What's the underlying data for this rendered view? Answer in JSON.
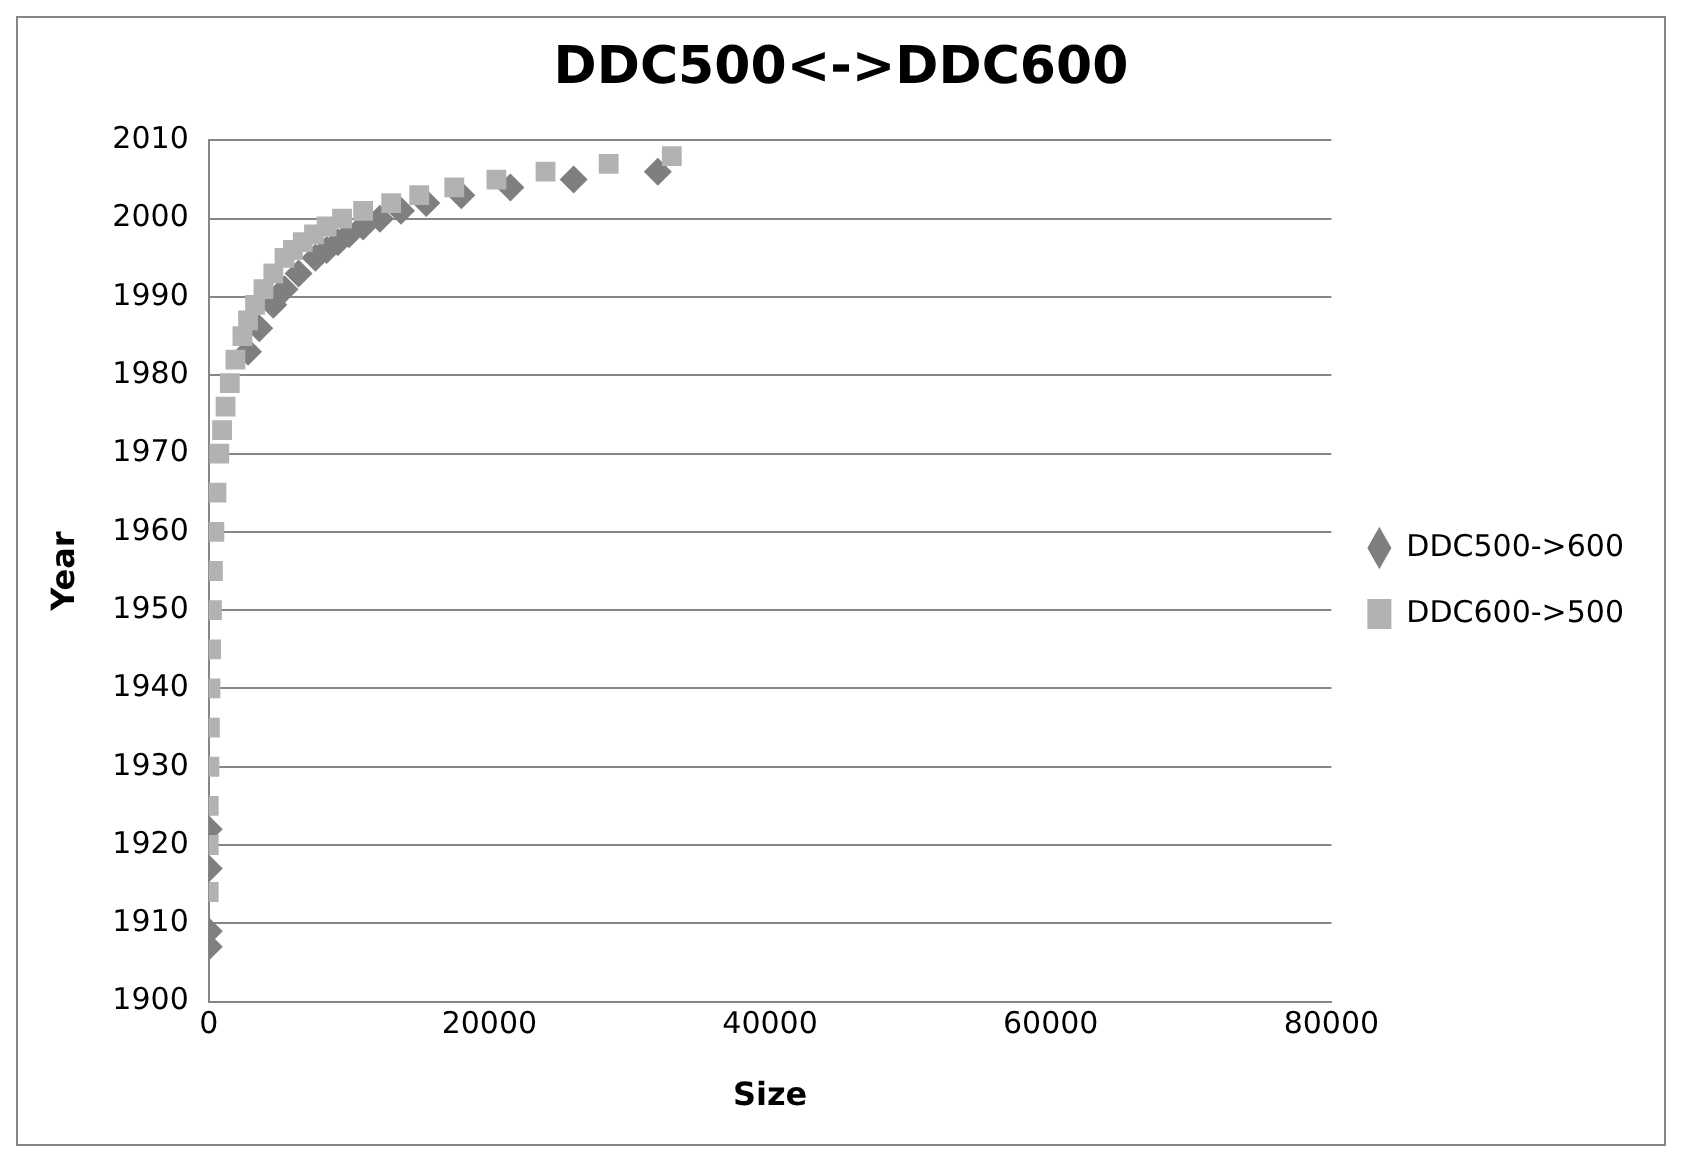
{
  "chart_data": {
    "type": "scatter",
    "title": "DDC500<->DDC600",
    "xlabel": "Size",
    "ylabel": "Year",
    "xlim": [
      0,
      80000
    ],
    "xticks": [
      0,
      20000,
      40000,
      60000,
      80000
    ],
    "ylim": [
      1900,
      2010
    ],
    "yticks": [
      1900,
      1910,
      1920,
      1930,
      1940,
      1950,
      1960,
      1970,
      1980,
      1990,
      2000,
      2010
    ],
    "grid": "y",
    "legend": "right",
    "series": [
      {
        "name": "DDC500->600",
        "color": "#7f7f7f",
        "marker": "diamond",
        "x": [
          0,
          0,
          0,
          0,
          2800,
          3600,
          4600,
          5400,
          6400,
          7600,
          8400,
          9200,
          10000,
          11000,
          12200,
          13700,
          15500,
          18000,
          21500,
          26000,
          32000
        ],
        "values": [
          1907,
          1909,
          1917,
          1922,
          1983,
          1986,
          1989,
          1991,
          1993,
          1995,
          1996,
          1997,
          1998,
          1999,
          2000,
          2001,
          2002,
          2003,
          2004,
          2005,
          2006
        ]
      },
      {
        "name": "DDC600->500",
        "color": "#b2b2b2",
        "marker": "square",
        "x": [
          0,
          0,
          0,
          50,
          80,
          120,
          170,
          230,
          300,
          400,
          550,
          750,
          950,
          1200,
          1500,
          1900,
          2400,
          2800,
          3300,
          3900,
          4600,
          5400,
          6000,
          6700,
          7500,
          8400,
          9500,
          11000,
          13000,
          15000,
          17500,
          20500,
          24000,
          28500,
          33000
        ],
        "values": [
          1914,
          1920,
          1925,
          1930,
          1935,
          1940,
          1945,
          1950,
          1955,
          1960,
          1965,
          1970,
          1973,
          1976,
          1979,
          1982,
          1985,
          1987,
          1989,
          1991,
          1993,
          1995,
          1996,
          1997,
          1998,
          1999,
          2000,
          2001,
          2002,
          2003,
          2004,
          2005,
          2006,
          2007,
          2008
        ]
      }
    ]
  }
}
